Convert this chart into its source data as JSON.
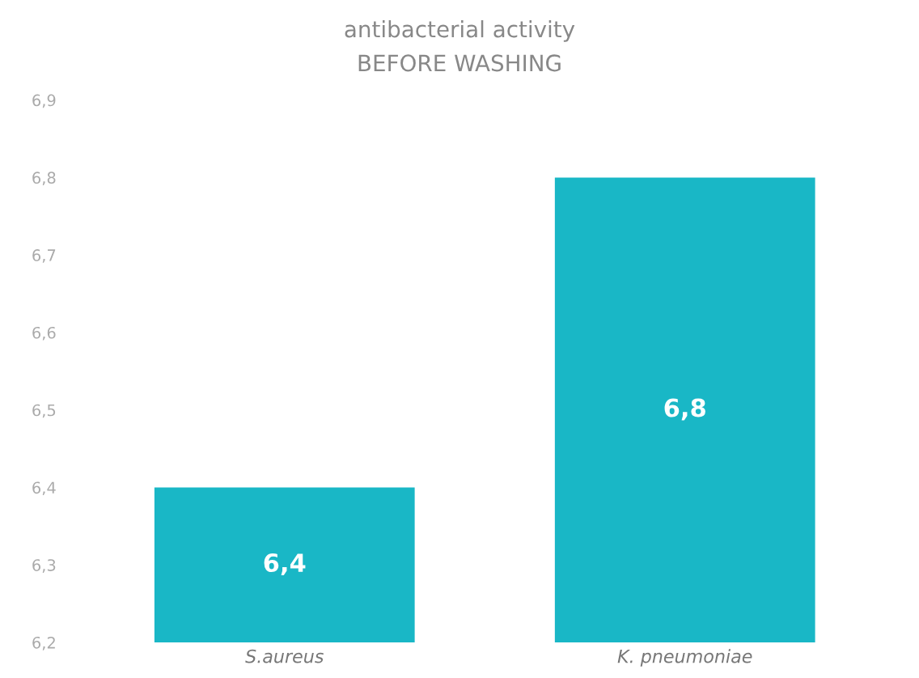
{
  "chart_data": {
    "type": "bar",
    "title": "antibacterial activity",
    "subtitle": "BEFORE WASHING",
    "categories": [
      "S.aureus",
      "K. pneumoniae"
    ],
    "values": [
      6.4,
      6.8
    ],
    "value_labels": [
      "6,4",
      "6,8"
    ],
    "color": "#19b7c6",
    "ylim": [
      6.2,
      6.9
    ],
    "yticks": [
      {
        "value": 6.2,
        "label": "6,2"
      },
      {
        "value": 6.3,
        "label": "6,3"
      },
      {
        "value": 6.4,
        "label": "6,4"
      },
      {
        "value": 6.5,
        "label": "6,5"
      },
      {
        "value": 6.6,
        "label": "6,6"
      },
      {
        "value": 6.7,
        "label": "6,7"
      },
      {
        "value": 6.8,
        "label": "6,8"
      },
      {
        "value": 6.9,
        "label": "6,9"
      }
    ],
    "grid": false,
    "legend": false
  }
}
